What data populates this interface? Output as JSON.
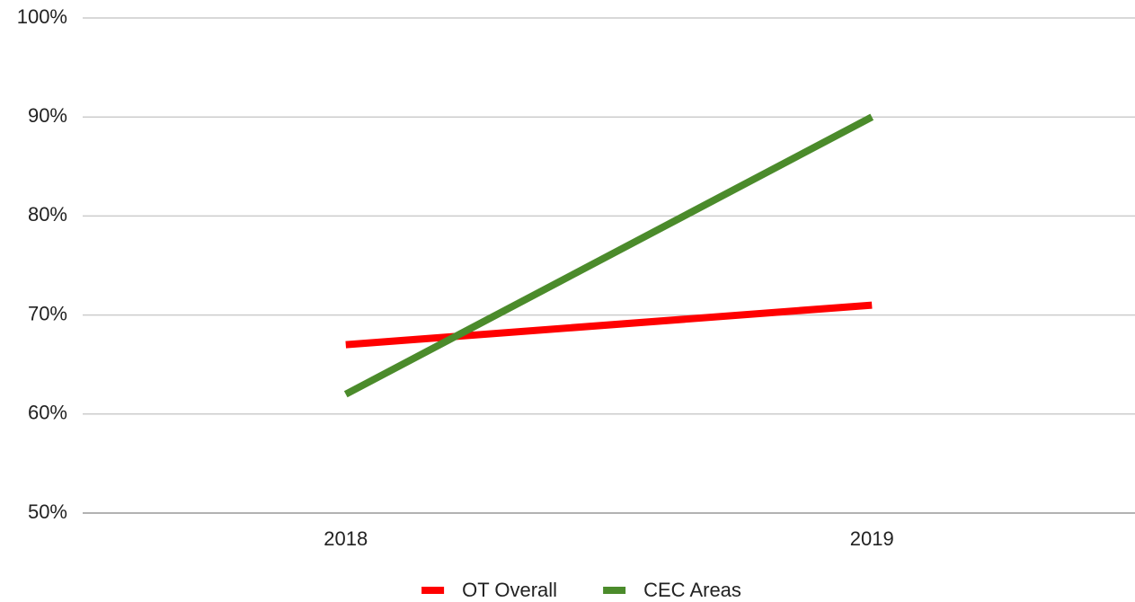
{
  "chart_data": {
    "type": "line",
    "categories": [
      "2018",
      "2019"
    ],
    "series": [
      {
        "name": "OT Overall",
        "color": "#ff0000",
        "values": [
          67,
          71
        ]
      },
      {
        "name": "CEC Areas",
        "color": "#4b8b2b",
        "values": [
          62,
          90
        ]
      }
    ],
    "ylim": [
      50,
      100
    ],
    "yticks": [
      {
        "value": 50,
        "label": "50%"
      },
      {
        "value": 60,
        "label": "60%"
      },
      {
        "value": 70,
        "label": "70%"
      },
      {
        "value": 80,
        "label": "80%"
      },
      {
        "value": 90,
        "label": "90%"
      },
      {
        "value": 100,
        "label": "100%"
      }
    ],
    "grid": true,
    "legend": "bottom"
  }
}
